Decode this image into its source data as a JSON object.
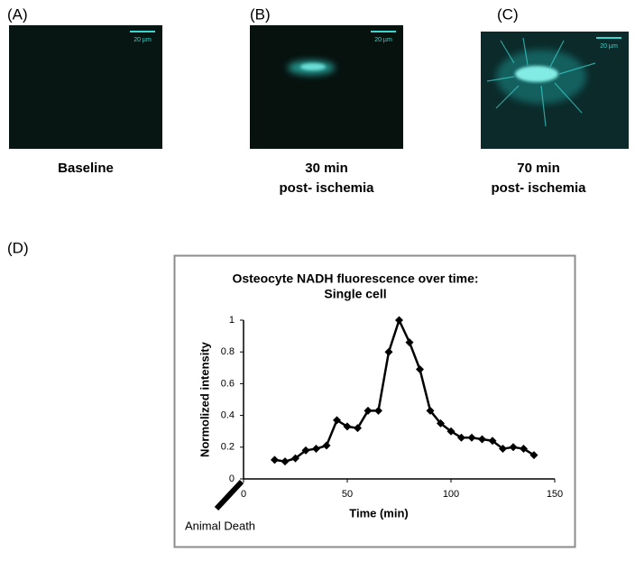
{
  "panels": [
    {
      "label": "(A)",
      "scale_bar": "20 µm",
      "caption": [
        "Baseline"
      ]
    },
    {
      "label": "(B)",
      "scale_bar": "20 µm",
      "caption": [
        "30 min",
        "post- ischemia"
      ]
    },
    {
      "label": "(C)",
      "scale_bar": "20 µm",
      "caption": [
        "70 min",
        "post- ischemia"
      ]
    }
  ],
  "panel_d_label": "(D)",
  "chart_data": {
    "type": "line",
    "title": [
      "Osteocyte NADH fluorescence over time:",
      "Single  cell"
    ],
    "x_label": "Time (min)",
    "y_label": "Normolized intensity",
    "annotation": "Animal Death",
    "x": [
      15,
      20,
      25,
      30,
      35,
      40,
      45,
      50,
      55,
      60,
      65,
      70,
      75,
      80,
      85,
      90,
      95,
      100,
      105,
      110,
      115,
      120,
      125,
      130,
      135,
      140
    ],
    "series": [
      {
        "name": "Single cell",
        "color": "#000000",
        "values": [
          0.12,
          0.11,
          0.13,
          0.18,
          0.19,
          0.21,
          0.37,
          0.33,
          0.32,
          0.43,
          0.43,
          0.8,
          1.0,
          0.86,
          0.69,
          0.43,
          0.35,
          0.3,
          0.26,
          0.26,
          0.25,
          0.24,
          0.19,
          0.2,
          0.19,
          0.15
        ]
      }
    ],
    "xlim": [
      0,
      150
    ],
    "xticks": [
      0,
      50,
      100,
      150
    ],
    "ylim": [
      0,
      1
    ],
    "yticks": [
      0,
      0.2,
      0.4,
      0.6,
      0.8,
      1
    ],
    "grid": false
  }
}
